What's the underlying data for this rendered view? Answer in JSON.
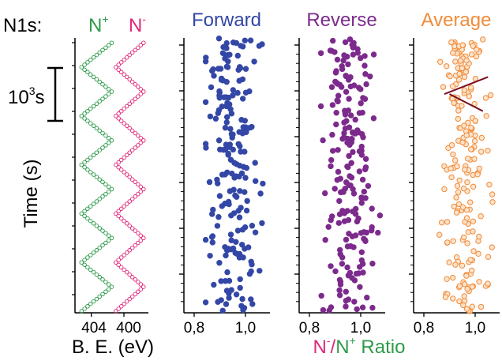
{
  "colors": {
    "green": "#2e9a4a",
    "magenta": "#e0287a",
    "blue": "#3347a6",
    "purple": "#7c2a8c",
    "orange": "#f28c3a",
    "dark_red": "#7a1020",
    "axis": "#000000"
  },
  "header": {
    "prefix": "N1s:",
    "n_plus_base": "N",
    "n_plus_sup": "+",
    "n_minus_base": "N",
    "n_minus_sup": "-"
  },
  "scale_bar": {
    "base": "10",
    "sup": "3",
    "unit": "s"
  },
  "ylabel": "Time (s)",
  "xlabel_be": "B. E. (eV)",
  "ratio_label": {
    "a": "N",
    "a_sup": "-",
    "slash": "/",
    "b": "N",
    "b_sup": "+",
    "rest": " Ratio"
  },
  "chart_data": [
    {
      "type": "line",
      "title": "",
      "xlabel": "B. E. (eV)",
      "ylabel": "Time (s)",
      "x_ticks": [
        "404",
        "400"
      ],
      "xlim": [
        406,
        397
      ],
      "ylim": [
        0,
        5600
      ],
      "series": [
        {
          "name": "N+",
          "t": [
            0,
            500,
            1000,
            1500,
            2000,
            2500,
            3000,
            3500,
            4000,
            4500,
            5000,
            5500
          ],
          "be": [
            405.2,
            401.5,
            405.2,
            401.5,
            405.2,
            401.5,
            405.2,
            401.5,
            405.2,
            401.5,
            405.2,
            401.5
          ]
        },
        {
          "name": "N-",
          "t": [
            0,
            500,
            1000,
            1500,
            2000,
            2500,
            3000,
            3500,
            4000,
            4500,
            5000,
            5500
          ],
          "be": [
            401.0,
            397.6,
            401.0,
            397.6,
            401.0,
            397.6,
            401.0,
            397.6,
            401.0,
            397.6,
            401.0,
            397.6
          ]
        }
      ]
    },
    {
      "type": "scatter",
      "title": "Forward",
      "x_ticks": [
        "0,8",
        "1,0"
      ],
      "xlim": [
        0.8,
        1.08
      ],
      "ylim": [
        0,
        5600
      ],
      "n_points": 200,
      "x_mean": 0.95,
      "x_spread": 0.05
    },
    {
      "type": "scatter",
      "title": "Reverse",
      "x_ticks": [
        "0,8",
        "1,0"
      ],
      "xlim": [
        0.8,
        1.08
      ],
      "ylim": [
        0,
        5600
      ],
      "n_points": 200,
      "x_mean": 0.96,
      "x_spread": 0.05
    },
    {
      "type": "scatter",
      "title": "Average",
      "x_ticks": [
        "0,8",
        "1,0"
      ],
      "xlim": [
        0.8,
        1.08
      ],
      "ylim": [
        0,
        5600
      ],
      "n_points": 200,
      "x_mean": 0.955,
      "x_spread": 0.045,
      "trend_lines": [
        {
          "x": [
            0.88,
            1.05
          ],
          "t": [
            4450,
            4800
          ]
        },
        {
          "x": [
            0.9,
            1.03
          ],
          "t": [
            4450,
            4100
          ]
        }
      ]
    }
  ]
}
